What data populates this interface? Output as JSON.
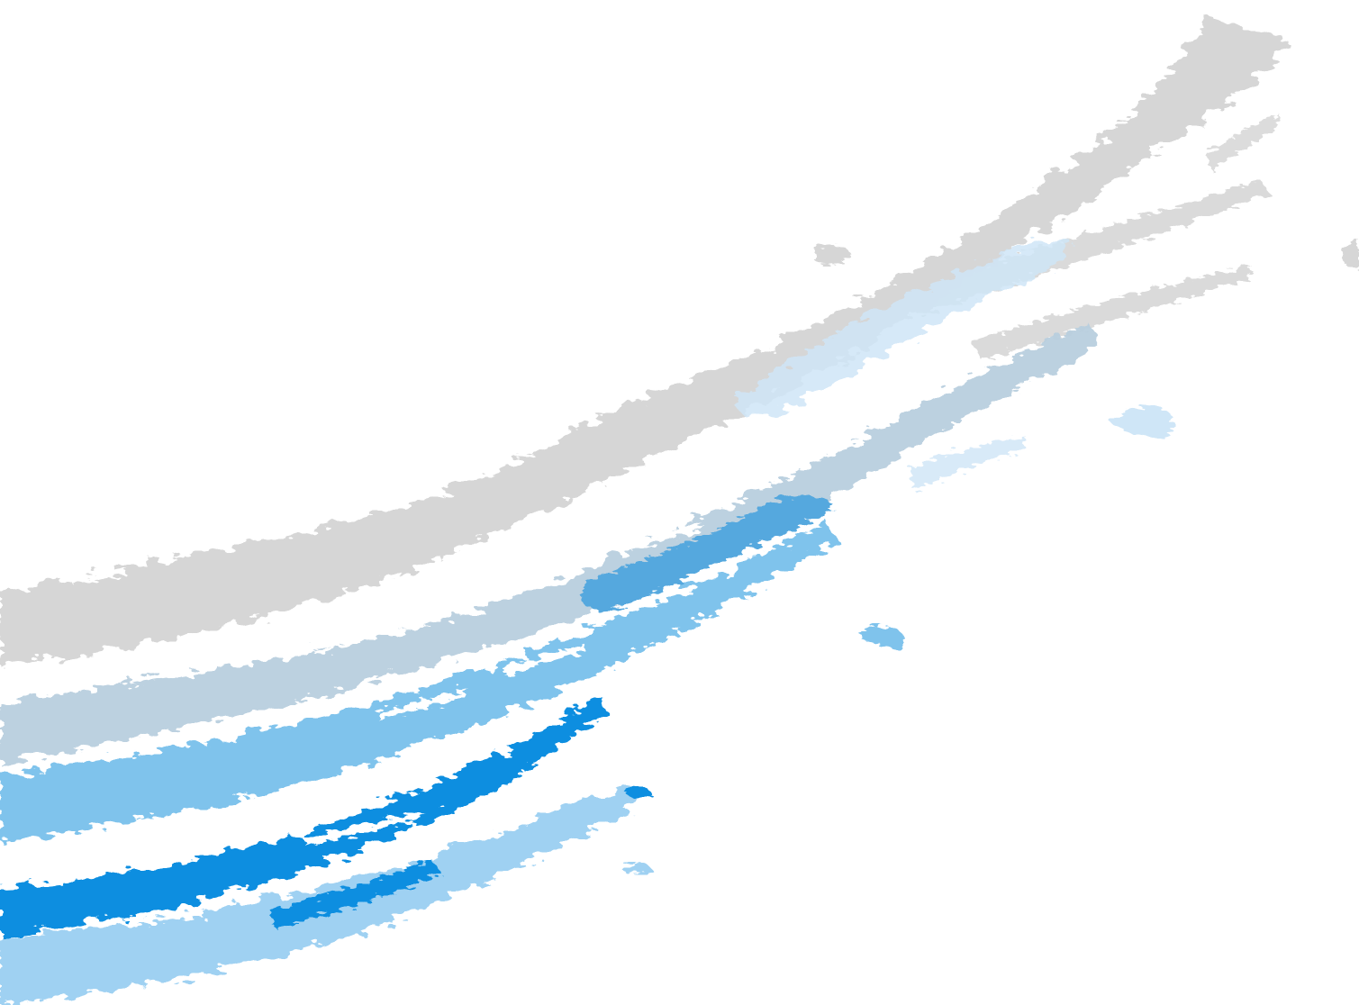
{
  "background": {
    "color": "#ffffff"
  },
  "palette": {
    "light_gray": "#d6d6d6",
    "blue_gray": "#b9cfdf",
    "pale_blue": "#cfe6f7",
    "sky_blue": "#7fc3ec",
    "light_blue": "#9fd1f2",
    "bright_blue": "#0a8ee0",
    "mid_blue": "#54a8de"
  },
  "artwork": {
    "name": "abstract-brush-strokes",
    "text": ""
  }
}
